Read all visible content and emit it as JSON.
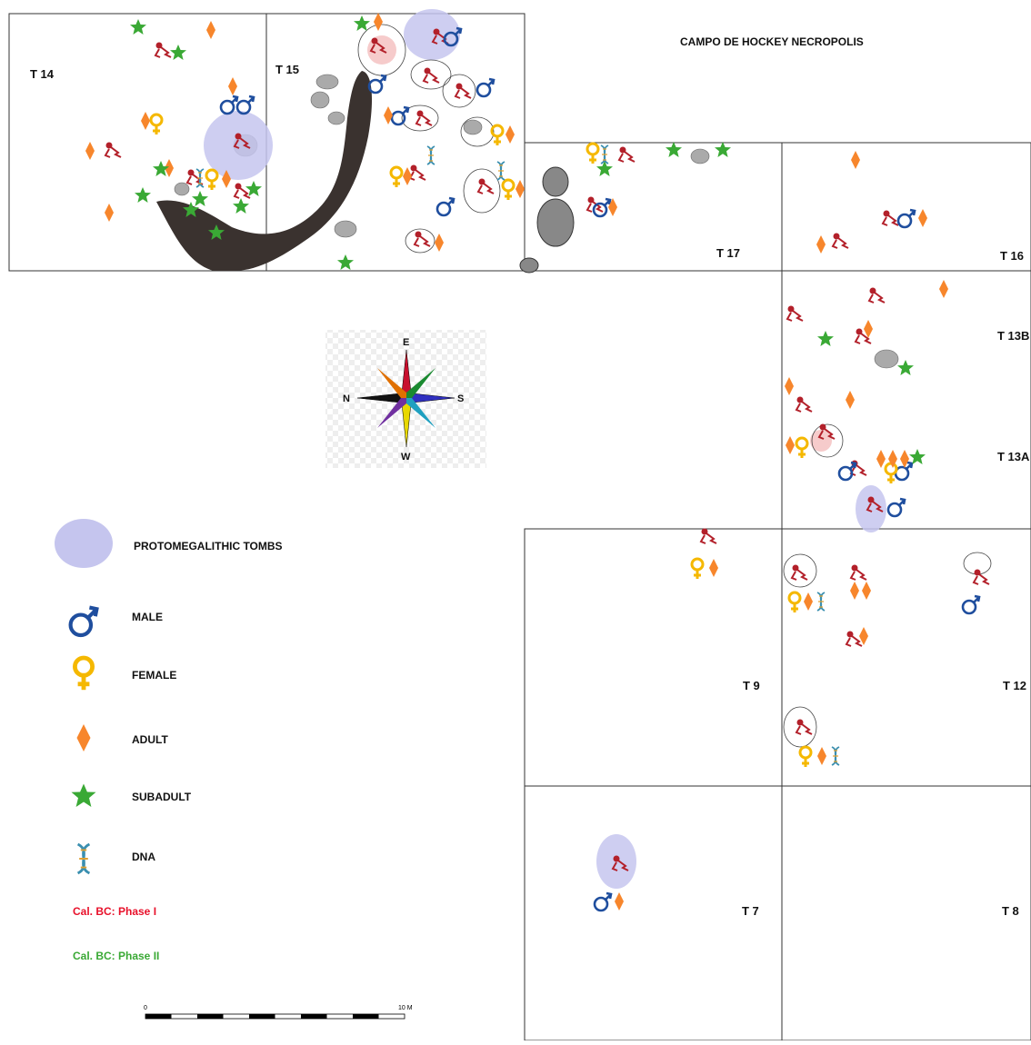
{
  "title": "CAMPO DE HOCKEY NECROPOLIS",
  "trenches": [
    "T 14",
    "T 15",
    "T 17",
    "T 16",
    "T 13B",
    "T 13A",
    "T 9",
    "T 12",
    "T 7",
    "T 8"
  ],
  "compass": {
    "e": "E",
    "n": "N",
    "s": "S",
    "w": "W"
  },
  "legend": [
    "PROTOMEGALITHIC TOMBS",
    "MALE",
    "FEMALE",
    "ADULT",
    "SUBADULT",
    "DNA",
    "Cal. BC: Phase I",
    "Cal. BC: Phase II"
  ],
  "scale": {
    "start": "0",
    "end": "10 M"
  }
}
